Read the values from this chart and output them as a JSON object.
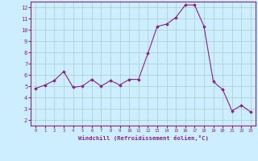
{
  "x": [
    0,
    1,
    2,
    3,
    4,
    5,
    6,
    7,
    8,
    9,
    10,
    11,
    12,
    13,
    14,
    15,
    16,
    17,
    18,
    19,
    20,
    21,
    22,
    23
  ],
  "y": [
    4.8,
    5.1,
    5.5,
    6.3,
    4.9,
    5.0,
    5.6,
    5.0,
    5.5,
    5.1,
    5.6,
    5.6,
    7.9,
    10.3,
    10.5,
    11.1,
    12.2,
    12.2,
    10.3,
    5.4,
    4.7,
    2.8,
    3.3,
    2.7
  ],
  "line_color": "#882288",
  "marker_color": "#882288",
  "bg_color": "#cceeff",
  "grid_color": "#aacccc",
  "xlabel": "Windchill (Refroidissement éolien,°C)",
  "xlim": [
    -0.5,
    23.5
  ],
  "ylim": [
    1.5,
    12.5
  ],
  "yticks": [
    2,
    3,
    4,
    5,
    6,
    7,
    8,
    9,
    10,
    11,
    12
  ],
  "xticks": [
    0,
    1,
    2,
    3,
    4,
    5,
    6,
    7,
    8,
    9,
    10,
    11,
    12,
    13,
    14,
    15,
    16,
    17,
    18,
    19,
    20,
    21,
    22,
    23
  ],
  "xlabel_color": "#882288",
  "tick_color": "#882288",
  "spine_color": "#882288"
}
